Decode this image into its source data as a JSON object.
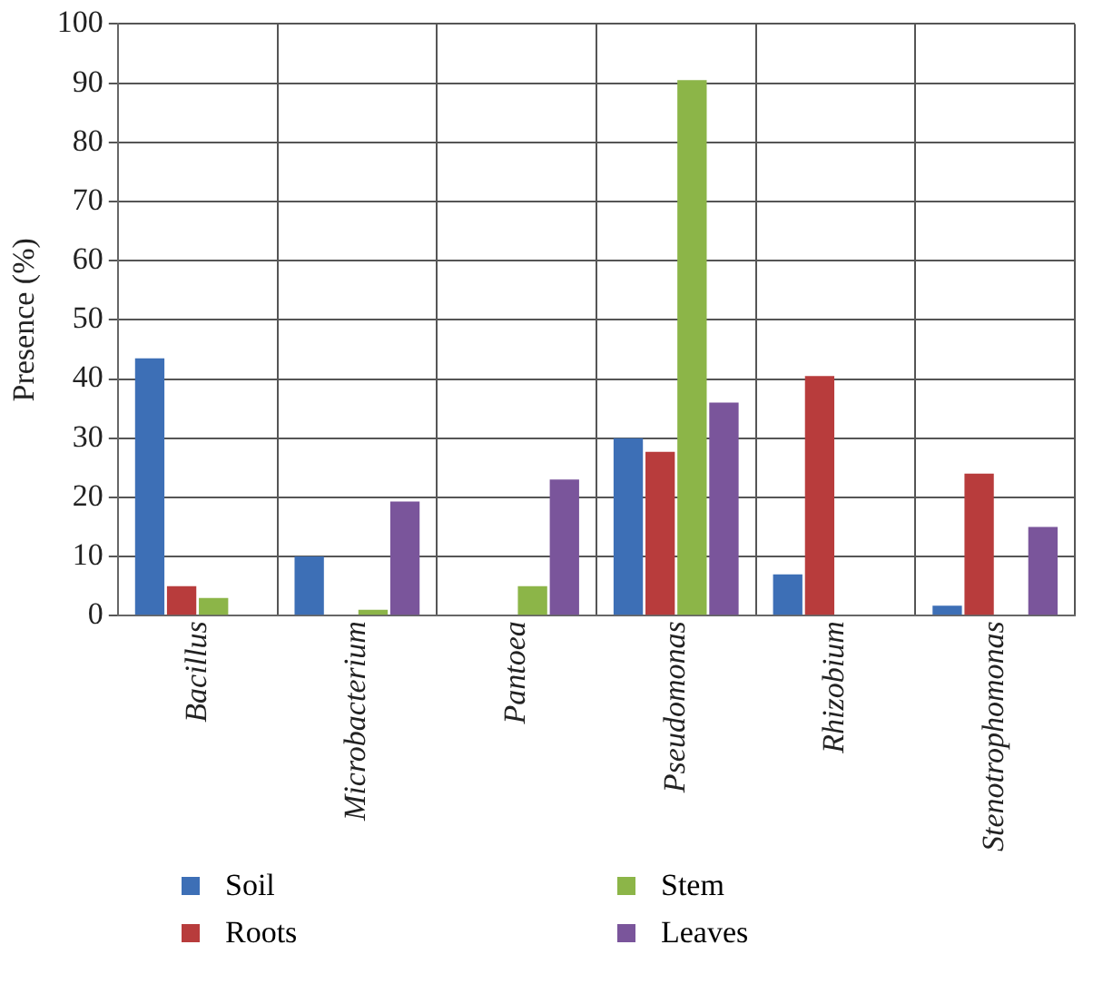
{
  "chart_data": {
    "type": "bar",
    "ylabel": "Presence (%)",
    "categories": [
      "Bacillus",
      "Microbacterium",
      "Pantoea",
      "Pseudomonas",
      "Rhizobium",
      "Stenotrophomonas"
    ],
    "series": [
      {
        "name": "Soil",
        "color": "#3d6fb6",
        "values": [
          43.5,
          10,
          0,
          30,
          7,
          1.7
        ]
      },
      {
        "name": "Roots",
        "color": "#b83c3c",
        "values": [
          5,
          0,
          0,
          27.7,
          40.5,
          24
        ]
      },
      {
        "name": "Stem",
        "color": "#8cb548",
        "values": [
          3,
          1,
          5,
          90.5,
          0,
          0
        ]
      },
      {
        "name": "Leaves",
        "color": "#7a559b",
        "values": [
          0,
          19.3,
          23,
          36,
          0,
          15
        ]
      }
    ],
    "ylim": [
      0,
      100
    ],
    "yticks": [
      0,
      10,
      20,
      30,
      40,
      50,
      60,
      70,
      80,
      90,
      100
    ],
    "grid": true,
    "legend": "bottom"
  }
}
